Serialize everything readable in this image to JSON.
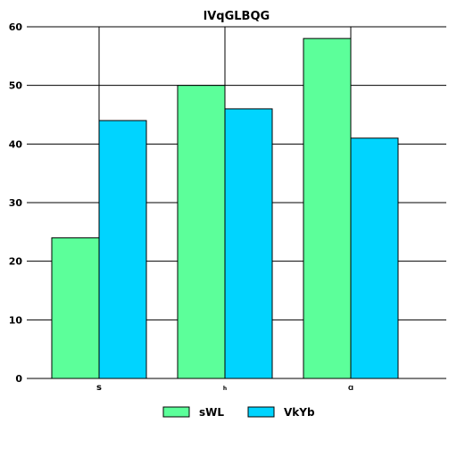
{
  "chart_data": {
    "type": "bar",
    "title": "lVqGLBQG",
    "categories": [
      "s",
      "h",
      "Ɑ"
    ],
    "series": [
      {
        "name": "sWL",
        "values": [
          24,
          50,
          58
        ],
        "color": "#5cff9a"
      },
      {
        "name": "VkYb",
        "values": [
          44,
          46,
          41
        ],
        "color": "#00d4ff"
      }
    ],
    "ylim": [
      0,
      60
    ],
    "yticks": [
      "0",
      "10",
      "20",
      "30",
      "40",
      "50",
      "60"
    ],
    "grid": "both",
    "legend_position": "bottom"
  }
}
